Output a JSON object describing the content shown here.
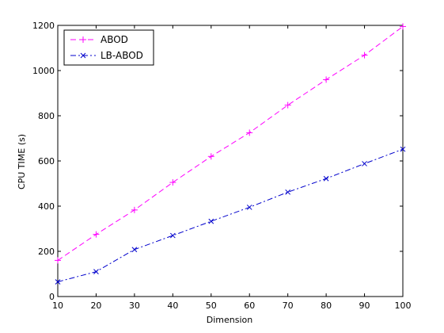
{
  "chart_data": {
    "type": "line",
    "title": "",
    "xlabel": "Dimension",
    "ylabel": "CPU TIME (s)",
    "xlim": [
      10,
      100
    ],
    "ylim": [
      0,
      1200
    ],
    "xticks": [
      10,
      20,
      30,
      40,
      50,
      60,
      70,
      80,
      90,
      100
    ],
    "yticks": [
      0,
      200,
      400,
      600,
      800,
      1000,
      1200
    ],
    "grid": false,
    "legend_position": "top-left",
    "x": [
      10,
      20,
      30,
      40,
      50,
      60,
      70,
      80,
      90,
      100
    ],
    "series": [
      {
        "name": "ABOD",
        "color": "#ff00ff",
        "marker": "plus",
        "line_style": "dashed",
        "values": [
          160,
          275,
          383,
          505,
          620,
          725,
          847,
          960,
          1068,
          1195
        ]
      },
      {
        "name": "LB-ABOD",
        "color": "#0000cc",
        "marker": "cross",
        "line_style": "dash-dot",
        "values": [
          65,
          110,
          208,
          270,
          333,
          395,
          462,
          522,
          588,
          652
        ]
      }
    ]
  }
}
